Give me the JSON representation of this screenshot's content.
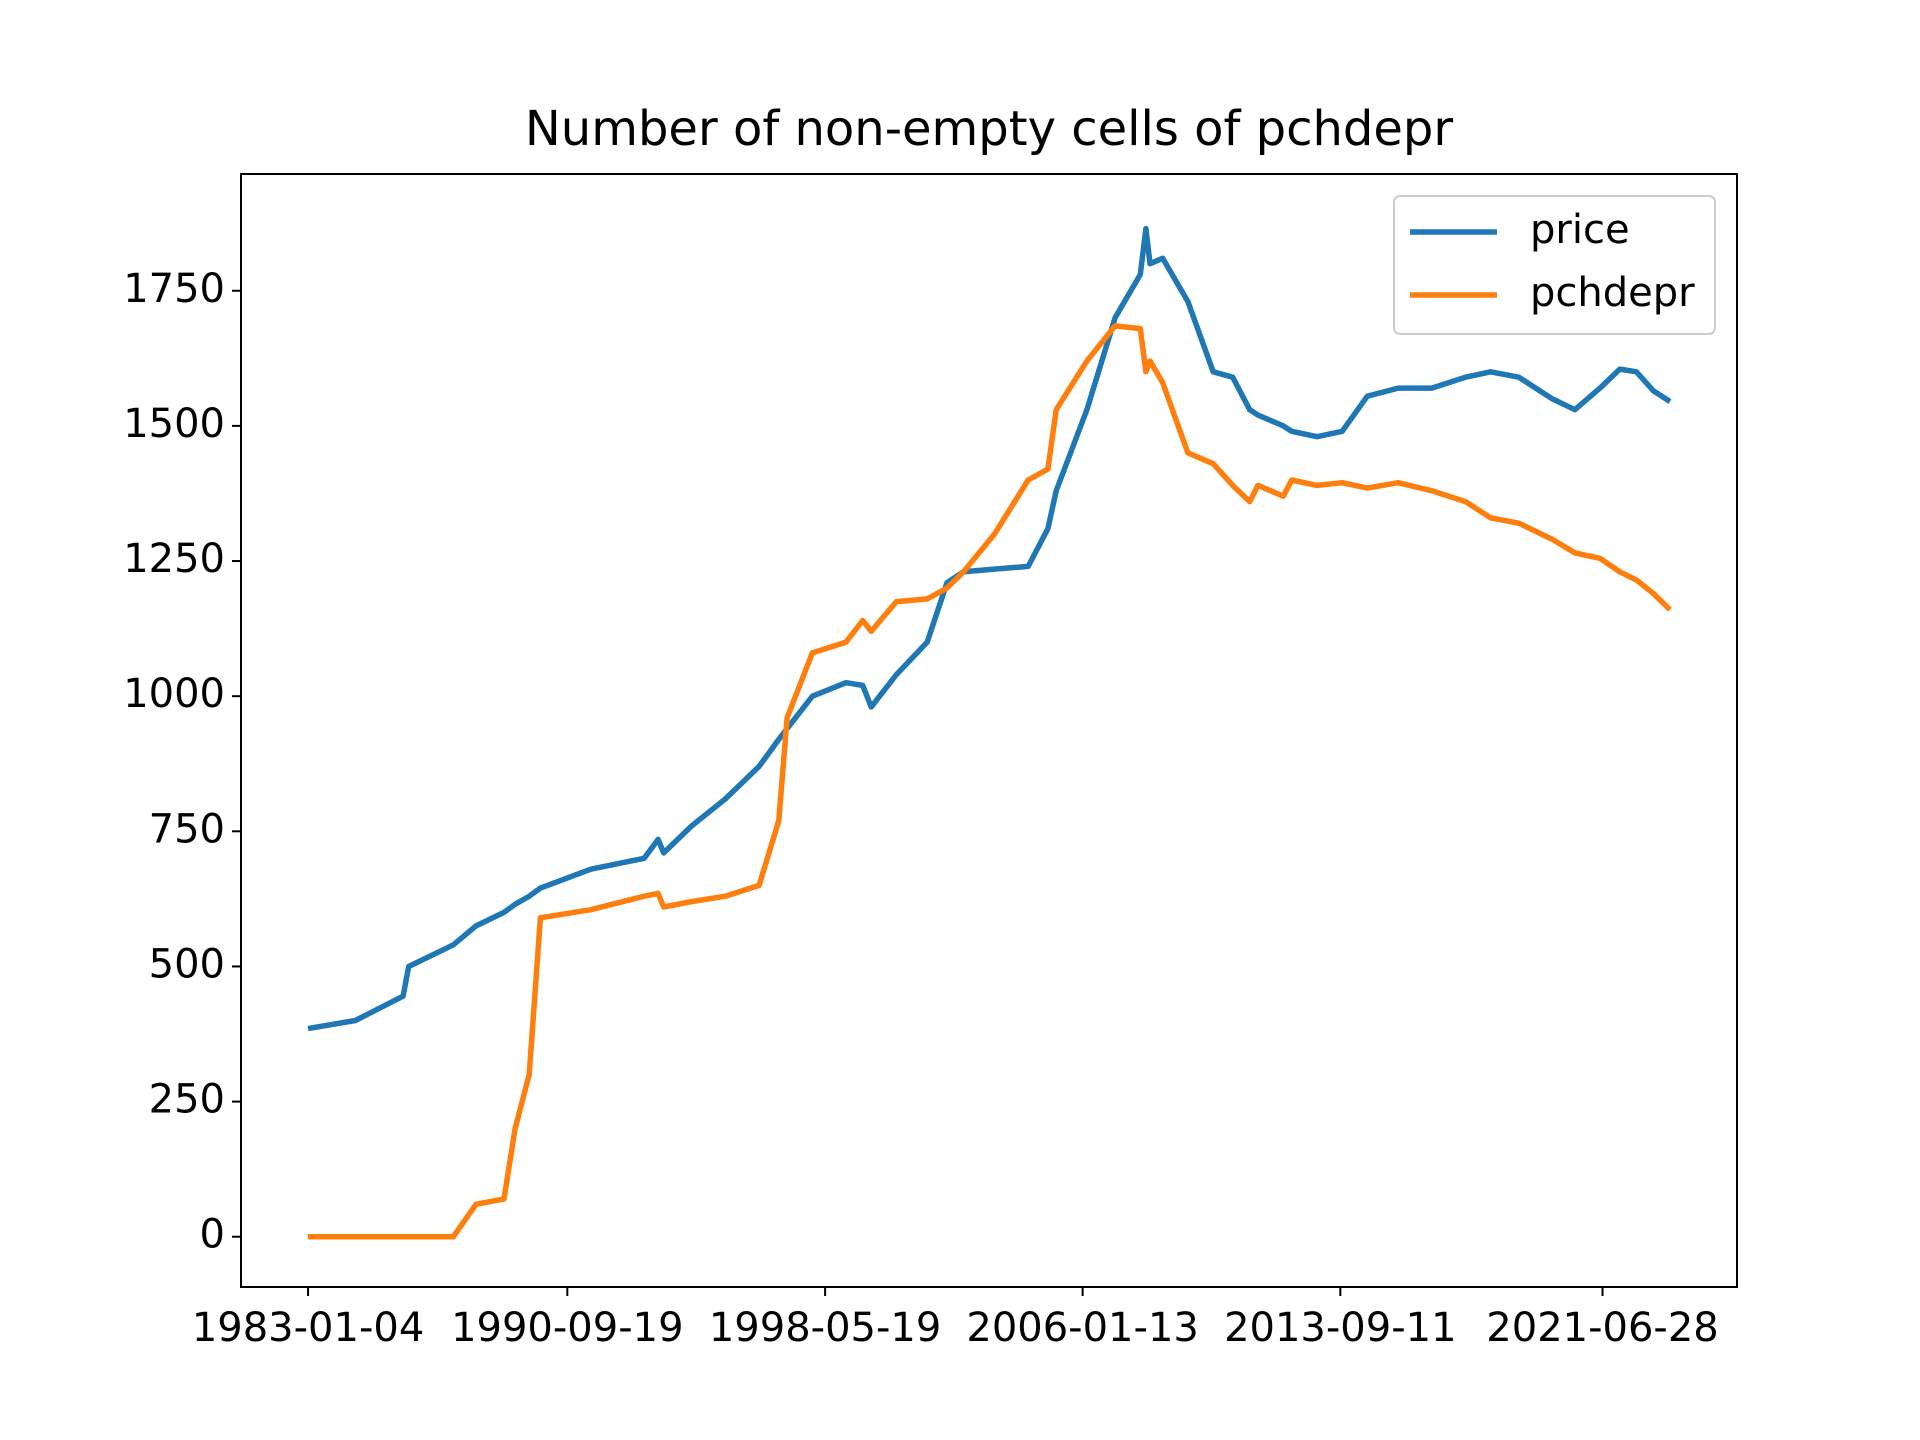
{
  "chart_data": {
    "type": "line",
    "title": "Number of non-empty cells of pchdepr",
    "x": [
      "1983-01-04",
      "1984-06-01",
      "1985-11-01",
      "1986-01-01",
      "1987-05-01",
      "1988-01-01",
      "1988-11-01",
      "1989-03-01",
      "1989-08-01",
      "1989-12-01",
      "1991-06-01",
      "1993-01-01",
      "1993-06-01",
      "1993-08-01",
      "1994-06-01",
      "1995-06-01",
      "1996-06-01",
      "1997-01-01",
      "1997-04-01",
      "1998-01-01",
      "1999-01-01",
      "1999-07-01",
      "1999-10-01",
      "2000-07-01",
      "2001-06-01",
      "2002-01-01",
      "2002-07-01",
      "2003-06-01",
      "2004-06-01",
      "2005-01-01",
      "2005-04-01",
      "2006-03-01",
      "2007-01-01",
      "2007-10-01",
      "2007-12-01",
      "2008-01-15",
      "2008-06-01",
      "2009-03-01",
      "2009-12-01",
      "2010-07-01",
      "2011-01-01",
      "2011-04-01",
      "2012-01-01",
      "2012-04-01",
      "2013-01-01",
      "2013-10-01",
      "2014-07-01",
      "2015-06-01",
      "2016-06-01",
      "2017-06-01",
      "2018-03-01",
      "2019-01-01",
      "2020-01-01",
      "2020-09-01",
      "2021-06-01",
      "2022-01-01",
      "2022-07-01",
      "2023-01-01",
      "2023-07-01"
    ],
    "series": [
      {
        "name": "price",
        "color": "#1f77b4",
        "values": [
          385,
          400,
          445,
          500,
          540,
          575,
          600,
          615,
          630,
          645,
          680,
          700,
          735,
          710,
          760,
          810,
          870,
          920,
          940,
          1000,
          1025,
          1020,
          980,
          1040,
          1100,
          1210,
          1230,
          1235,
          1240,
          1310,
          1380,
          1530,
          1700,
          1780,
          1865,
          1800,
          1810,
          1730,
          1600,
          1590,
          1530,
          1520,
          1500,
          1490,
          1480,
          1490,
          1555,
          1570,
          1570,
          1590,
          1600,
          1590,
          1550,
          1530,
          1570,
          1605,
          1600,
          1565,
          1545
        ]
      },
      {
        "name": "pchdepr",
        "color": "#ff7f0e",
        "values": [
          0,
          0,
          0,
          0,
          0,
          60,
          70,
          200,
          300,
          590,
          605,
          630,
          635,
          610,
          620,
          630,
          650,
          770,
          960,
          1080,
          1100,
          1140,
          1120,
          1175,
          1180,
          1200,
          1230,
          1300,
          1400,
          1420,
          1530,
          1620,
          1685,
          1680,
          1600,
          1620,
          1580,
          1450,
          1430,
          1390,
          1360,
          1390,
          1370,
          1400,
          1390,
          1395,
          1385,
          1395,
          1380,
          1360,
          1330,
          1320,
          1290,
          1265,
          1255,
          1230,
          1215,
          1190,
          1160
        ]
      }
    ],
    "xlim": [
      "1981-01-06",
      "2025-06-27"
    ],
    "xticks": [
      "1983-01-04",
      "1990-09-19",
      "1998-05-19",
      "2006-01-13",
      "2013-09-11",
      "2021-06-28"
    ],
    "ylim": [
      -93,
      1966
    ],
    "yticks": [
      0,
      250,
      500,
      750,
      1000,
      1250,
      1500,
      1750
    ],
    "legend": "upper right"
  }
}
